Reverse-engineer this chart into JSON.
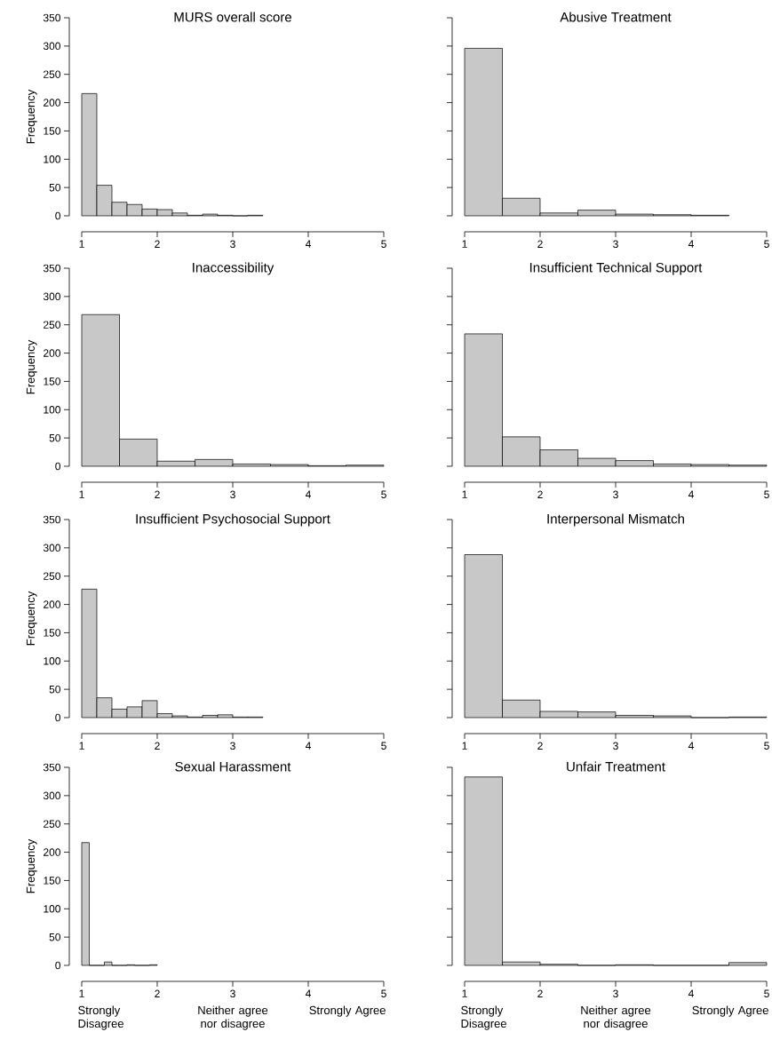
{
  "chart_data": [
    {
      "type": "histogram",
      "title": "MURS overall score",
      "ylabel": "Frequency",
      "bins": [
        1,
        1.2,
        1.4,
        1.6,
        1.8,
        2,
        2.2,
        2.4,
        2.6,
        2.8,
        3,
        3.2,
        3.4
      ],
      "values": [
        216,
        54,
        24,
        20,
        12,
        11,
        5,
        1,
        3,
        1,
        0,
        1
      ],
      "color": "#c8c8c8",
      "xlim": [
        1,
        5
      ],
      "ylim": [
        0,
        350
      ],
      "xticks": [
        1,
        2,
        3,
        4,
        5
      ],
      "yticks": [
        0,
        50,
        100,
        150,
        200,
        250,
        300,
        350
      ]
    },
    {
      "type": "histogram",
      "title": "Abusive Treatment",
      "bins": [
        1,
        1.5,
        2,
        2.5,
        3,
        3.5,
        4,
        4.5
      ],
      "values": [
        296,
        31,
        5,
        10,
        3,
        2,
        1
      ],
      "color": "#c8c8c8",
      "xlim": [
        1,
        5
      ],
      "ylim": [
        0,
        350
      ],
      "xticks": [
        1,
        2,
        3,
        4,
        5
      ],
      "yticks": [
        0,
        50,
        100,
        150,
        200,
        250,
        300,
        350
      ],
      "tick_labels": "x"
    },
    {
      "type": "histogram",
      "title": "Inaccessibility",
      "ylabel": "Frequency",
      "bins": [
        1,
        1.5,
        2,
        2.5,
        3,
        3.5,
        4,
        4.5,
        5
      ],
      "values": [
        268,
        48,
        9,
        12,
        4,
        3,
        1,
        2
      ],
      "color": "#c8c8c8",
      "xlim": [
        1,
        5
      ],
      "ylim": [
        0,
        350
      ],
      "xticks": [
        1,
        2,
        3,
        4,
        5
      ],
      "yticks": [
        0,
        50,
        100,
        150,
        200,
        250,
        300,
        350
      ]
    },
    {
      "type": "histogram",
      "title": "Insufficient Technical Support",
      "bins": [
        1,
        1.5,
        2,
        2.5,
        3,
        3.5,
        4,
        4.5,
        5
      ],
      "values": [
        234,
        52,
        29,
        14,
        10,
        4,
        3,
        2
      ],
      "color": "#c8c8c8",
      "xlim": [
        1,
        5
      ],
      "ylim": [
        0,
        350
      ],
      "xticks": [
        1,
        2,
        3,
        4,
        5
      ],
      "yticks": [
        0,
        50,
        100,
        150,
        200,
        250,
        300,
        350
      ],
      "tick_labels": "x"
    },
    {
      "type": "histogram",
      "title": "Insufficient Psychosocial Support",
      "ylabel": "Frequency",
      "bins": [
        1,
        1.2,
        1.4,
        1.6,
        1.8,
        2,
        2.2,
        2.4,
        2.6,
        2.8,
        3,
        3.2,
        3.4
      ],
      "values": [
        227,
        35,
        15,
        19,
        30,
        7,
        3,
        1,
        4,
        5,
        1,
        1
      ],
      "color": "#c8c8c8",
      "xlim": [
        1,
        5
      ],
      "ylim": [
        0,
        350
      ],
      "xticks": [
        1,
        2,
        3,
        4,
        5
      ],
      "yticks": [
        0,
        50,
        100,
        150,
        200,
        250,
        300,
        350
      ]
    },
    {
      "type": "histogram",
      "title": "Interpersonal Mismatch",
      "bins": [
        1,
        1.5,
        2,
        2.5,
        3,
        3.5,
        4,
        4.5,
        5
      ],
      "values": [
        288,
        31,
        11,
        10,
        4,
        3,
        0,
        1
      ],
      "color": "#c8c8c8",
      "xlim": [
        1,
        5
      ],
      "ylim": [
        0,
        350
      ],
      "xticks": [
        1,
        2,
        3,
        4,
        5
      ],
      "yticks": [
        0,
        50,
        100,
        150,
        200,
        250,
        300,
        350
      ],
      "tick_labels": "x"
    },
    {
      "type": "histogram",
      "title": "Sexual Harassment",
      "ylabel": "Frequency",
      "bins": [
        1,
        1.1,
        1.2,
        1.3,
        1.4,
        1.5,
        1.6,
        1.7,
        1.8,
        1.9,
        2
      ],
      "values": [
        217,
        0,
        0,
        6,
        0,
        0,
        1,
        0,
        0,
        1
      ],
      "color": "#c8c8c8",
      "xlim": [
        1,
        5
      ],
      "ylim": [
        0,
        350
      ],
      "xticks": [
        1,
        2,
        3,
        4,
        5
      ],
      "yticks": [
        0,
        50,
        100,
        150,
        200,
        250,
        300,
        350
      ],
      "annotations": [
        "Strongly Disagree",
        "Neither agree nor disagree",
        "Strongly Agree"
      ]
    },
    {
      "type": "histogram",
      "title": "Unfair Treatment",
      "bins": [
        1,
        1.5,
        2,
        2.5,
        3,
        3.5,
        4,
        4.5,
        5
      ],
      "values": [
        333,
        6,
        2,
        0,
        1,
        0,
        0,
        5
      ],
      "color": "#c8c8c8",
      "xlim": [
        1,
        5
      ],
      "ylim": [
        0,
        350
      ],
      "xticks": [
        1,
        2,
        3,
        4,
        5
      ],
      "yticks": [
        0,
        50,
        100,
        150,
        200,
        250,
        300,
        350
      ],
      "tick_labels": "x",
      "annotations": [
        "Strongly Disagree",
        "Neither agree nor disagree",
        "Strongly Agree"
      ]
    }
  ]
}
